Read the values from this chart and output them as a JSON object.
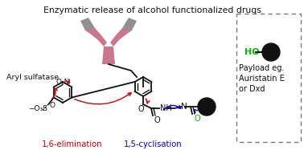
{
  "title": "Enzymatic release of alcohol functionalized drugs",
  "title_fontsize": 7.8,
  "bg_color": "#ffffff",
  "text_aryl_sulfatase": "Aryl sulfatase",
  "text_16elim": "1,6-elimination",
  "text_15cycl": "1,5-cyclisation",
  "text_payload_box": "Payload eg.\nAuristatin E\nor Dxd",
  "text_ho": "HO",
  "color_red": "#cc0000",
  "color_blue": "#0000cc",
  "color_green": "#00bb00",
  "color_antibody_body": "#c8788a",
  "color_antibody_arm": "#909090",
  "color_black": "#111111",
  "color_bond": "#111111",
  "figsize": [
    3.78,
    1.87
  ],
  "dpi": 100
}
